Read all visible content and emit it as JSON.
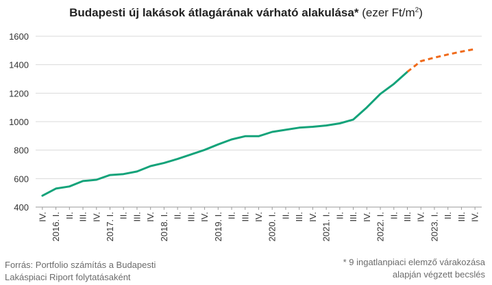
{
  "title_bold": "Budapesti új lakások átlagárának várható alakulása*",
  "title_unit_prefix": "(ezer Ft/m",
  "title_unit_sup": "2",
  "title_unit_suffix": ")",
  "source_line1": "Forrás: Portfolio számítás a Budapesti",
  "source_line2": "Lakáspiaci Riport folytatásaként",
  "footnote_line1": "* 9 ingatlanpiaci elemző várakozása",
  "footnote_line2": "alapján végzett becslés",
  "colors": {
    "actual": "#14a37a",
    "forecast": "#ef6a1a",
    "grid": "#d9d9d9",
    "axis": "#999999"
  },
  "chart_data": {
    "type": "line",
    "ylim": [
      400,
      1600
    ],
    "yticks": [
      400,
      600,
      800,
      1000,
      1200,
      1400,
      1600
    ],
    "grid": true,
    "x_labels": [
      "IV.",
      "2016. I.",
      "II.",
      "III.",
      "IV.",
      "2017. I.",
      "II.",
      "III.",
      "IV.",
      "2018. I.",
      "II.",
      "III.",
      "IV.",
      "2019. I.",
      "II.",
      "III.",
      "IV.",
      "2020. I.",
      "II.",
      "III.",
      "IV.",
      "2021. I.",
      "II.",
      "III.",
      "IV.",
      "2022. I.",
      "II.",
      "III.",
      "IV.",
      "2023. I.",
      "II.",
      "III.",
      "IV."
    ],
    "series": [
      {
        "values": [
          480,
          530,
          545,
          583,
          592,
          625,
          632,
          650,
          688,
          710,
          738,
          770,
          802,
          840,
          875,
          898,
          898,
          928,
          943,
          958,
          964,
          973,
          988,
          1015,
          1100,
          1195,
          1265,
          1350,
          null,
          null,
          null,
          null,
          null
        ]
      },
      {
        "values": [
          null,
          null,
          null,
          null,
          null,
          null,
          null,
          null,
          null,
          null,
          null,
          null,
          null,
          null,
          null,
          null,
          null,
          null,
          null,
          null,
          null,
          null,
          null,
          null,
          null,
          null,
          null,
          1350,
          1425,
          1450,
          1472,
          1492,
          1510
        ]
      }
    ]
  }
}
